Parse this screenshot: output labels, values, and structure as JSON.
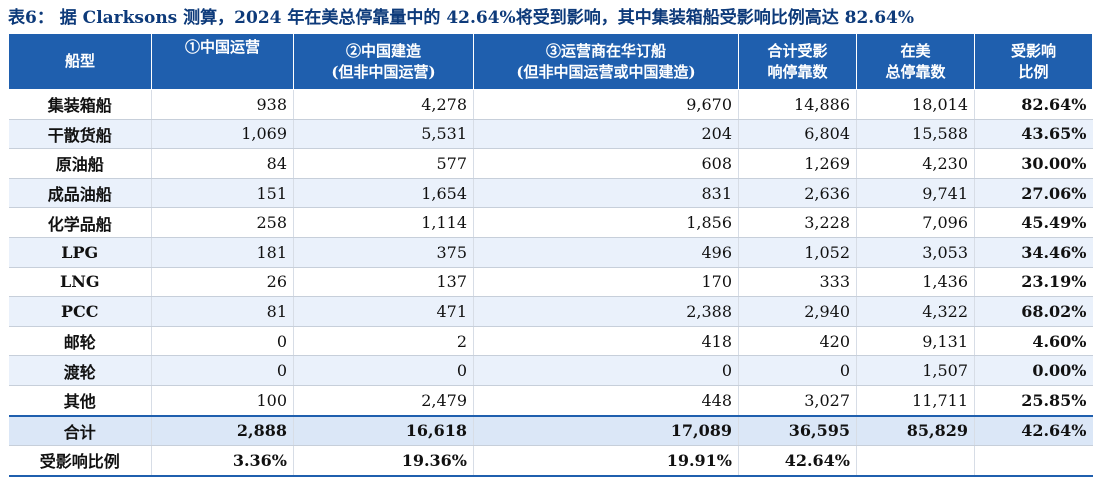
{
  "title": "表6：  据 Clarksons 测算，2024 年在美总停靠量中的 42.64%将受到影响，其中集装箱船受影响比例高达 82.64%",
  "header": {
    "col0": "船型",
    "col1": "①中国运营",
    "col2a": "②中国建造",
    "col2b": "(但非中国运营)",
    "col3a": "③运营商在华订船",
    "col3b": "(但非中国运营或中国建造)",
    "col4a": "合计受影",
    "col4b": "响停靠数",
    "col5a": "在美",
    "col5b": "总停靠数",
    "col6a": "受影响",
    "col6b": "比例"
  },
  "rows": [
    {
      "type": "集装箱船",
      "c1": "938",
      "c2": "4,278",
      "c3": "9,670",
      "c4": "14,886",
      "c5": "18,014",
      "c6": "82.64%"
    },
    {
      "type": "干散货船",
      "c1": "1,069",
      "c2": "5,531",
      "c3": "204",
      "c4": "6,804",
      "c5": "15,588",
      "c6": "43.65%"
    },
    {
      "type": "原油船",
      "c1": "84",
      "c2": "577",
      "c3": "608",
      "c4": "1,269",
      "c5": "4,230",
      "c6": "30.00%"
    },
    {
      "type": "成品油船",
      "c1": "151",
      "c2": "1,654",
      "c3": "831",
      "c4": "2,636",
      "c5": "9,741",
      "c6": "27.06%"
    },
    {
      "type": "化学品船",
      "c1": "258",
      "c2": "1,114",
      "c3": "1,856",
      "c4": "3,228",
      "c5": "7,096",
      "c6": "45.49%"
    },
    {
      "type": "LPG",
      "c1": "181",
      "c2": "375",
      "c3": "496",
      "c4": "1,052",
      "c5": "3,053",
      "c6": "34.46%"
    },
    {
      "type": "LNG",
      "c1": "26",
      "c2": "137",
      "c3": "170",
      "c4": "333",
      "c5": "1,436",
      "c6": "23.19%"
    },
    {
      "type": "PCC",
      "c1": "81",
      "c2": "471",
      "c3": "2,388",
      "c4": "2,940",
      "c5": "4,322",
      "c6": "68.02%"
    },
    {
      "type": "邮轮",
      "c1": "0",
      "c2": "2",
      "c3": "418",
      "c4": "420",
      "c5": "9,131",
      "c6": "4.60%"
    },
    {
      "type": "渡轮",
      "c1": "0",
      "c2": "0",
      "c3": "0",
      "c4": "0",
      "c5": "1,507",
      "c6": "0.00%"
    },
    {
      "type": "其他",
      "c1": "100",
      "c2": "2,479",
      "c3": "448",
      "c4": "3,027",
      "c5": "11,711",
      "c6": "25.85%"
    }
  ],
  "total": {
    "type": "合计",
    "c1": "2,888",
    "c2": "16,618",
    "c3": "17,089",
    "c4": "36,595",
    "c5": "85,829",
    "c6": "42.64%"
  },
  "ratio": {
    "type": "受影响比例",
    "c1": "3.36%",
    "c2": "19.36%",
    "c3": "19.91%",
    "c4": "42.64%",
    "c5": "",
    "c6": ""
  }
}
